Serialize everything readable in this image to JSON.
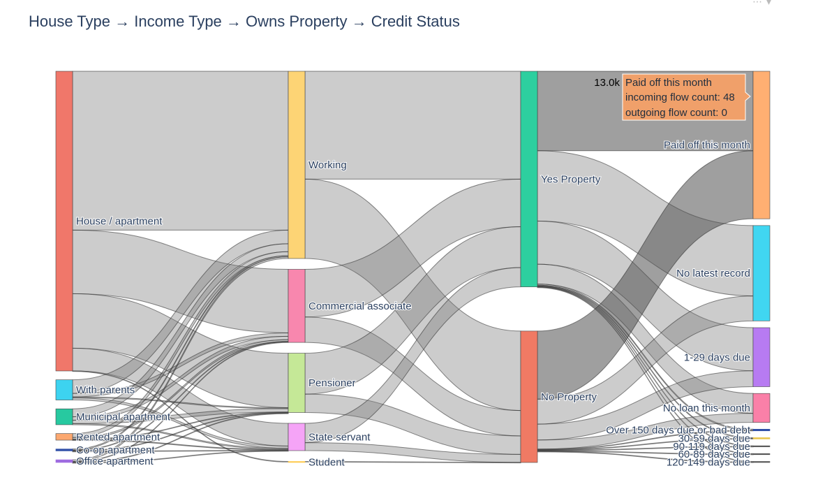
{
  "chart_data": {
    "type": "sankey",
    "title": "House Type → Income Type → Owns Property → Credit Status",
    "columns": [
      [
        {
          "id": "house",
          "label": "House / apartment",
          "color": "#F0776A"
        },
        {
          "id": "parents",
          "label": "With parents",
          "color": "#3DD3F0"
        },
        {
          "id": "municipal",
          "label": "Municipal apartment",
          "color": "#27C9A0"
        },
        {
          "id": "rented",
          "label": "Rented apartment",
          "color": "#FCA870"
        },
        {
          "id": "coop",
          "label": "Co-op apartment",
          "color": "#3050A8"
        },
        {
          "id": "office",
          "label": "Office apartment",
          "color": "#9E6BE0"
        }
      ],
      [
        {
          "id": "working",
          "label": "Working",
          "color": "#FDD475"
        },
        {
          "id": "commercial",
          "label": "Commercial associate",
          "color": "#F887AE"
        },
        {
          "id": "pensioner",
          "label": "Pensioner",
          "color": "#C5E897"
        },
        {
          "id": "state",
          "label": "State servant",
          "color": "#F5A4F7"
        },
        {
          "id": "student",
          "label": "Student",
          "color": "#FECB52"
        }
      ],
      [
        {
          "id": "yes",
          "label": "Yes Property",
          "color": "#2DCF9F"
        },
        {
          "id": "no",
          "label": "No Property",
          "color": "#F07A64"
        }
      ],
      [
        {
          "id": "paid",
          "label": "Paid off this month",
          "color": "#FFAF72"
        },
        {
          "id": "nolatest",
          "label": "No latest record",
          "color": "#40D6F1"
        },
        {
          "id": "d1_29",
          "label": "1-29 days due",
          "color": "#B77BF2"
        },
        {
          "id": "noloan",
          "label": "No loan this month",
          "color": "#FA80A8"
        },
        {
          "id": "over150",
          "label": "Over 150 days due or bad debt",
          "color": "#3050A8"
        },
        {
          "id": "d30_59",
          "label": "30-59 days due",
          "color": "#E8C54C"
        },
        {
          "id": "d90_119",
          "label": "90-119 days due",
          "color": "#555555"
        },
        {
          "id": "d60_89",
          "label": "60-89 days due",
          "color": "#555555"
        },
        {
          "id": "d120_149",
          "label": "120-149 days due",
          "color": "#555555"
        }
      ]
    ],
    "links": [
      {
        "source": "house",
        "target": "working",
        "value": 14000
      },
      {
        "source": "house",
        "target": "commercial",
        "value": 5600
      },
      {
        "source": "house",
        "target": "pensioner",
        "value": 4800
      },
      {
        "source": "house",
        "target": "state",
        "value": 2000
      },
      {
        "source": "house",
        "target": "student",
        "value": 10
      },
      {
        "source": "parents",
        "target": "working",
        "value": 1200
      },
      {
        "source": "parents",
        "target": "commercial",
        "value": 300
      },
      {
        "source": "parents",
        "target": "pensioner",
        "value": 80
      },
      {
        "source": "parents",
        "target": "state",
        "value": 200
      },
      {
        "source": "municipal",
        "target": "working",
        "value": 700
      },
      {
        "source": "municipal",
        "target": "commercial",
        "value": 300
      },
      {
        "source": "municipal",
        "target": "pensioner",
        "value": 300
      },
      {
        "source": "municipal",
        "target": "state",
        "value": 100
      },
      {
        "source": "rented",
        "target": "working",
        "value": 350
      },
      {
        "source": "rented",
        "target": "commercial",
        "value": 150
      },
      {
        "source": "rented",
        "target": "pensioner",
        "value": 20
      },
      {
        "source": "rented",
        "target": "state",
        "value": 60
      },
      {
        "source": "coop",
        "target": "working",
        "value": 100
      },
      {
        "source": "coop",
        "target": "commercial",
        "value": 40
      },
      {
        "source": "coop",
        "target": "pensioner",
        "value": 15
      },
      {
        "source": "coop",
        "target": "state",
        "value": 15
      },
      {
        "source": "office",
        "target": "working",
        "value": 150
      },
      {
        "source": "office",
        "target": "commercial",
        "value": 50
      },
      {
        "source": "office",
        "target": "pensioner",
        "value": 10
      },
      {
        "source": "office",
        "target": "state",
        "value": 30
      },
      {
        "source": "working",
        "target": "yes",
        "value": 9500
      },
      {
        "source": "working",
        "target": "no",
        "value": 7000
      },
      {
        "source": "commercial",
        "target": "yes",
        "value": 4200
      },
      {
        "source": "commercial",
        "target": "no",
        "value": 2240
      },
      {
        "source": "pensioner",
        "target": "yes",
        "value": 3600
      },
      {
        "source": "pensioner",
        "target": "no",
        "value": 1625
      },
      {
        "source": "state",
        "target": "yes",
        "value": 1700
      },
      {
        "source": "state",
        "target": "no",
        "value": 705
      },
      {
        "source": "student",
        "target": "no",
        "value": 10
      },
      {
        "source": "yes",
        "target": "paid",
        "value": 7000
      },
      {
        "source": "yes",
        "target": "nolatest",
        "value": 6200
      },
      {
        "source": "yes",
        "target": "d1_29",
        "value": 3800
      },
      {
        "source": "yes",
        "target": "noloan",
        "value": 1750
      },
      {
        "source": "yes",
        "target": "over150",
        "value": 100
      },
      {
        "source": "yes",
        "target": "d30_59",
        "value": 70
      },
      {
        "source": "yes",
        "target": "d90_119",
        "value": 25
      },
      {
        "source": "yes",
        "target": "d60_89",
        "value": 25
      },
      {
        "source": "yes",
        "target": "d120_149",
        "value": 30
      },
      {
        "source": "no",
        "target": "paid",
        "value": 6000
      },
      {
        "source": "no",
        "target": "nolatest",
        "value": 2200
      },
      {
        "source": "no",
        "target": "d1_29",
        "value": 1400
      },
      {
        "source": "no",
        "target": "noloan",
        "value": 800
      },
      {
        "source": "no",
        "target": "over150",
        "value": 50
      },
      {
        "source": "no",
        "target": "d30_59",
        "value": 50
      },
      {
        "source": "no",
        "target": "d90_119",
        "value": 15
      },
      {
        "source": "no",
        "target": "d60_89",
        "value": 15
      },
      {
        "source": "no",
        "target": "d120_149",
        "value": 20
      }
    ],
    "tooltip": {
      "node": "paid",
      "value_label": "13.0k",
      "line1": "Paid off this month",
      "line2": "incoming flow count: 48",
      "line3": "outgoing flow count: 0"
    }
  }
}
